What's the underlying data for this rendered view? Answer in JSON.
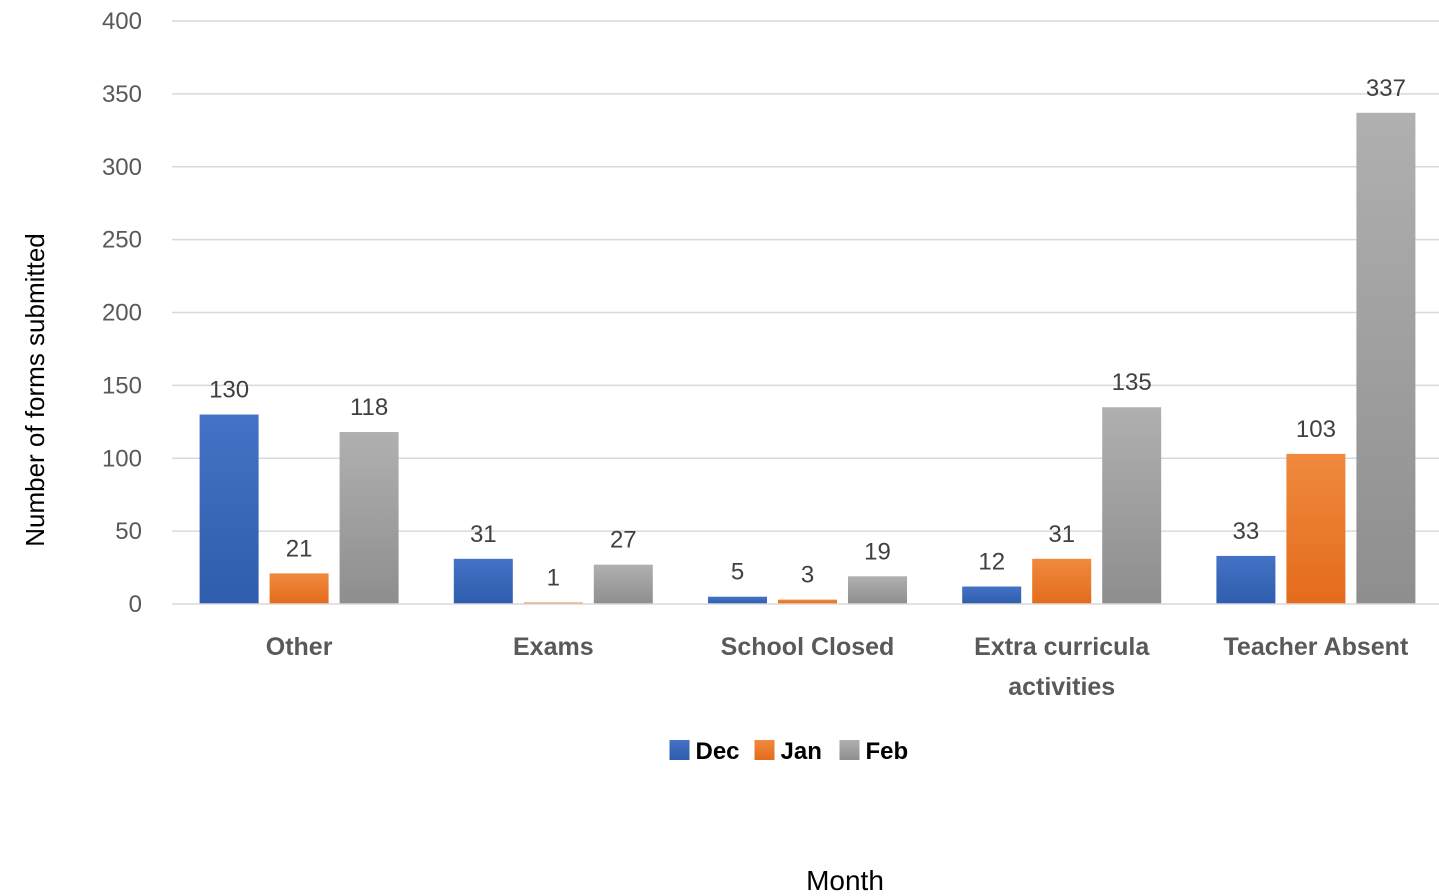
{
  "chart_data": {
    "type": "bar",
    "categories": [
      [
        "Other"
      ],
      [
        "Exams"
      ],
      [
        "School Closed"
      ],
      [
        "Extra curricula",
        "activities"
      ],
      [
        "Teacher Absent"
      ]
    ],
    "series": [
      {
        "name": "Dec",
        "color": "#4472C4",
        "color_dark": "#2F5DAE",
        "values": [
          130,
          31,
          5,
          12,
          33
        ]
      },
      {
        "name": "Jan",
        "color": "#F08A3E",
        "color_dark": "#E46B1C",
        "values": [
          21,
          1,
          3,
          31,
          103
        ]
      },
      {
        "name": "Feb",
        "color": "#B0B0B0",
        "color_dark": "#8E8E8E",
        "values": [
          118,
          27,
          19,
          135,
          337
        ]
      }
    ],
    "ylabel": "Number of forms submitted",
    "xlabel": "Month",
    "ylim": [
      0,
      400
    ],
    "yticks": [
      0,
      50,
      100,
      150,
      200,
      250,
      300,
      350,
      400
    ],
    "grid": true,
    "legend_position": "bottom"
  }
}
